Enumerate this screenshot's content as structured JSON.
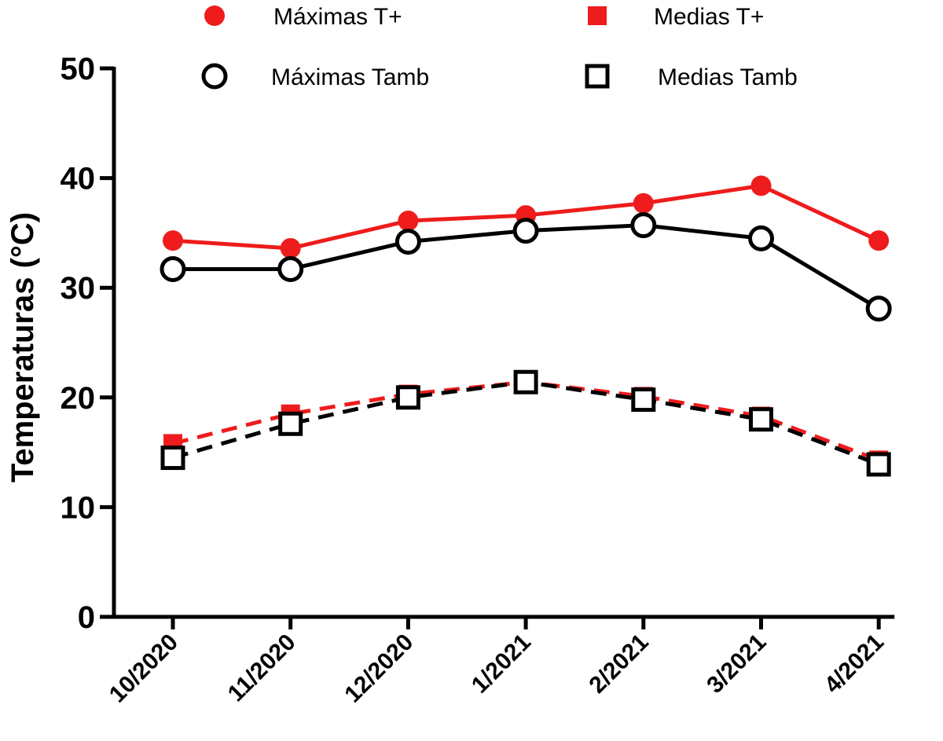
{
  "chart_data": {
    "type": "line",
    "categories": [
      "10/2020",
      "11/2020",
      "12/2020",
      "1/2021",
      "2/2021",
      "3/2021",
      "4/2021"
    ],
    "ylabel": "Temperaturas (°C)",
    "xlabel": "",
    "ylim": [
      0,
      50
    ],
    "yticks": [
      0,
      10,
      20,
      30,
      40,
      50
    ],
    "grid": false,
    "legend_position": "top",
    "series": [
      {
        "name": "Máximas T+",
        "values": [
          34.3,
          33.6,
          36.1,
          36.6,
          37.7,
          39.3,
          34.3
        ],
        "color": "#ee1c1c",
        "marker": "filled-circle",
        "line": "solid"
      },
      {
        "name": "Medias T+",
        "values": [
          15.8,
          18.5,
          20.3,
          21.4,
          20.1,
          18.3,
          14.3
        ],
        "color": "#ee1c1c",
        "marker": "filled-square",
        "line": "dashed"
      },
      {
        "name": "Máximas Tamb",
        "values": [
          31.7,
          31.7,
          34.2,
          35.2,
          35.7,
          34.5,
          28.1
        ],
        "color": "#000000",
        "marker": "open-circle",
        "line": "solid"
      },
      {
        "name": "Medias Tamb",
        "values": [
          14.5,
          17.6,
          20.0,
          21.4,
          19.8,
          18.0,
          13.9
        ],
        "color": "#000000",
        "marker": "open-square",
        "line": "dashed"
      }
    ]
  }
}
